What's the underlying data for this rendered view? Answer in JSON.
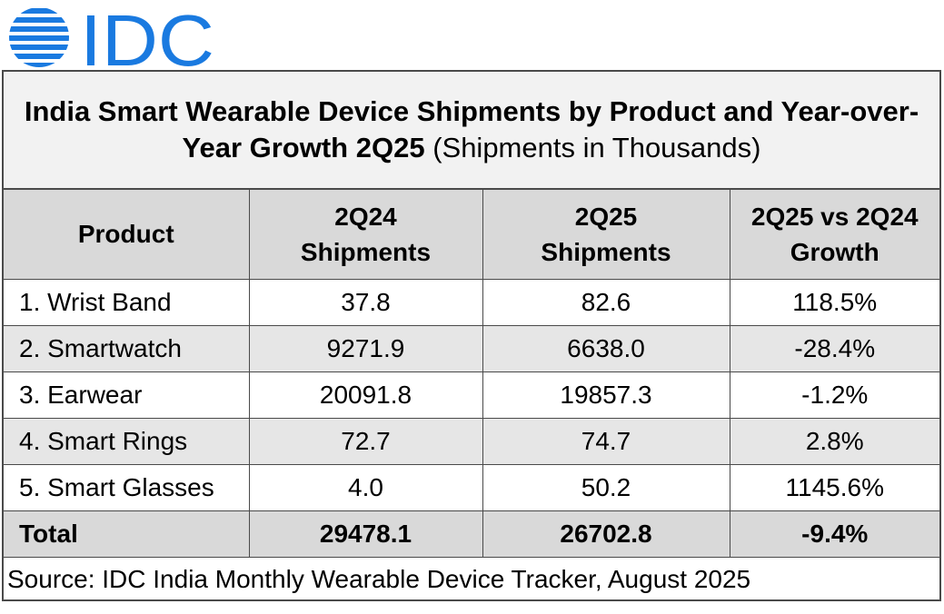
{
  "brand": {
    "logo_text": "IDC",
    "logo_color": "#1a7ae0"
  },
  "title": {
    "bold": "India Smart Wearable Device Shipments by Product and Year-over-Year Growth 2Q25",
    "normal": "(Shipments in Thousands)"
  },
  "table": {
    "columns": [
      "Product",
      "2Q24 Shipments",
      "2Q25 Shipments",
      "2Q25 vs 2Q24 Growth"
    ],
    "rows": [
      [
        "1. Wrist Band",
        "37.8",
        "82.6",
        "118.5%"
      ],
      [
        "2. Smartwatch",
        "9271.9",
        "6638.0",
        "-28.4%"
      ],
      [
        "3. Earwear",
        "20091.8",
        "19857.3",
        "-1.2%"
      ],
      [
        "4. Smart Rings",
        "72.7",
        "74.7",
        "2.8%"
      ],
      [
        "5. Smart Glasses",
        "4.0",
        "50.2",
        "1145.6%"
      ]
    ],
    "total": [
      "Total",
      "29478.1",
      "26702.8",
      "-9.4%"
    ]
  },
  "source": "Source: IDC India Monthly Wearable Device Tracker, August 2025"
}
